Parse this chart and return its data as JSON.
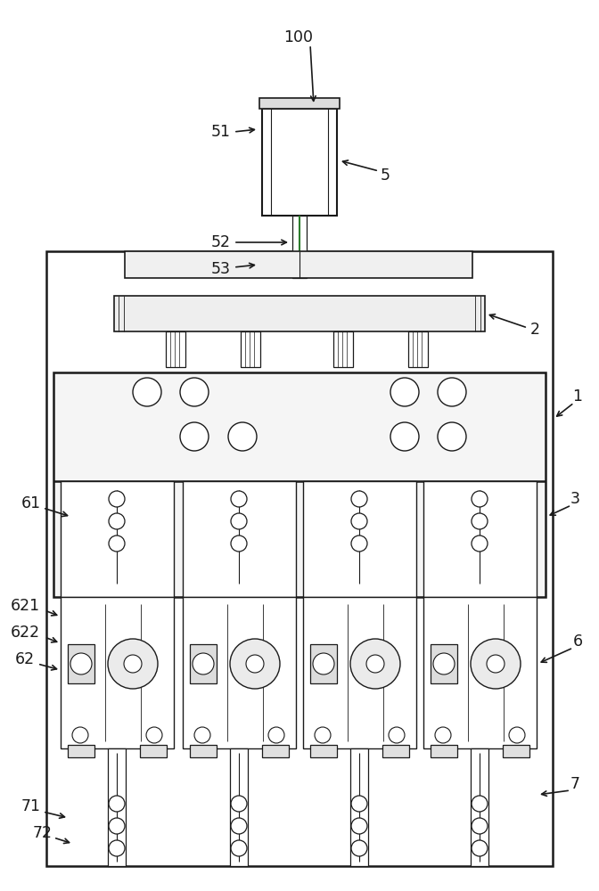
{
  "bg_color": "#ffffff",
  "lc": "#1a1a1a",
  "green": "#2d7d2d",
  "fig_w": 6.72,
  "fig_h": 10.0,
  "dpi": 100
}
